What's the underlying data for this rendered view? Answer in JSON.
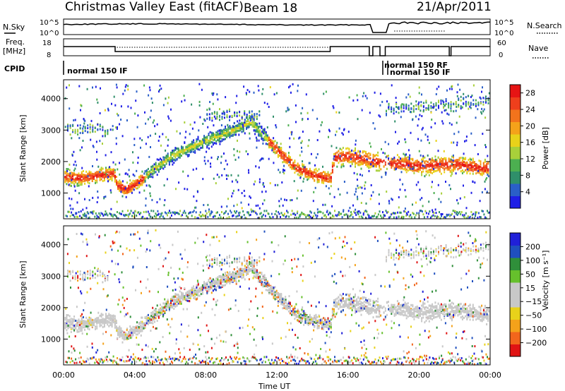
{
  "header": {
    "title": "Christmas Valley East (fitACF)",
    "beam": "Beam 18",
    "date": "21/Apr/2011"
  },
  "status_panels": {
    "nsky_label": "N.Sky",
    "nsearch_label": "N.Search",
    "count_ticks_left": [
      "10^5",
      "10^0"
    ],
    "count_ticks_right": [
      "10^5",
      "10^0"
    ],
    "freq_label_1": "Freq.",
    "freq_label_2": "[MHz]",
    "freq_ticks": [
      "18",
      "8"
    ],
    "nave_label": "Nave",
    "nave_ticks": [
      "60",
      "0"
    ],
    "cpid_label": "CPID",
    "cpid_entries": [
      "normal 150 IF",
      "normal 150 RF",
      "normal 150 IF"
    ]
  },
  "colors": {
    "power_scale": [
      "#1f1fe6",
      "#2a5fc8",
      "#2f8f6a",
      "#4caf50",
      "#a8d03a",
      "#e8d21a",
      "#f4a21a",
      "#f2731c",
      "#ef3f1c",
      "#e61414"
    ],
    "velocity_scale": [
      "#2020d8",
      "#1f4fbf",
      "#2f8f3a",
      "#66c02c",
      "#c8c8c8",
      "#c8c8c8",
      "#e8d21a",
      "#f4a21a",
      "#f2661c",
      "#e01414"
    ],
    "ground_scatter": "#c8c8c8"
  },
  "chart_data": [
    {
      "type": "heatmap",
      "title": "Power",
      "xlabel": "",
      "ylabel": "Slant Range [km]",
      "x_ticks": [
        "00:00",
        "04:00",
        "08:00",
        "12:00",
        "16:00",
        "20:00",
        "00:00"
      ],
      "xlim_hours": [
        0,
        24
      ],
      "y_ticks": [
        "1000",
        "2000",
        "3000",
        "4000"
      ],
      "ylim_km": [
        180,
        4600
      ],
      "colorbar_label": "Power [dB]",
      "colorbar_ticks": [
        "4",
        "8",
        "12",
        "16",
        "20",
        "24",
        "28"
      ],
      "colorbar_range": [
        0,
        30
      ],
      "main_band": [
        {
          "t": 0.0,
          "km": 1550
        },
        {
          "t": 1.0,
          "km": 1500
        },
        {
          "t": 2.0,
          "km": 1600
        },
        {
          "t": 2.8,
          "km": 1650
        },
        {
          "t": 3.0,
          "km": 1250
        },
        {
          "t": 3.5,
          "km": 1150
        },
        {
          "t": 4.0,
          "km": 1300
        },
        {
          "t": 5.0,
          "km": 1750
        },
        {
          "t": 6.0,
          "km": 2200
        },
        {
          "t": 7.0,
          "km": 2450
        },
        {
          "t": 8.0,
          "km": 2700
        },
        {
          "t": 9.0,
          "km": 2900
        },
        {
          "t": 10.0,
          "km": 3150
        },
        {
          "t": 10.5,
          "km": 3300
        },
        {
          "t": 12.0,
          "km": 2400
        },
        {
          "t": 13.0,
          "km": 1850
        },
        {
          "t": 14.0,
          "km": 1600
        },
        {
          "t": 15.0,
          "km": 1500
        },
        {
          "t": 15.2,
          "km": 2150
        },
        {
          "t": 16.0,
          "km": 2200
        },
        {
          "t": 17.0,
          "km": 2100
        },
        {
          "t": 18.0,
          "km": 2000
        },
        {
          "t": 20.0,
          "km": 1900
        },
        {
          "t": 22.0,
          "km": 1950
        },
        {
          "t": 24.0,
          "km": 1800
        }
      ]
    },
    {
      "type": "heatmap",
      "title": "Velocity",
      "xlabel": "Time UT",
      "ylabel": "Slant Range [km]",
      "x_ticks": [
        "00:00",
        "04:00",
        "08:00",
        "12:00",
        "16:00",
        "20:00",
        "00:00"
      ],
      "xlim_hours": [
        0,
        24
      ],
      "y_ticks": [
        "1000",
        "2000",
        "3000",
        "4000"
      ],
      "ylim_km": [
        180,
        4600
      ],
      "colorbar_label": "Velocity [m s⁻¹]",
      "colorbar_ticks": [
        "200",
        "100",
        "50",
        "15",
        "−15",
        "−50",
        "−100",
        "−200"
      ],
      "colorbar_range": [
        -250,
        250
      ]
    }
  ]
}
